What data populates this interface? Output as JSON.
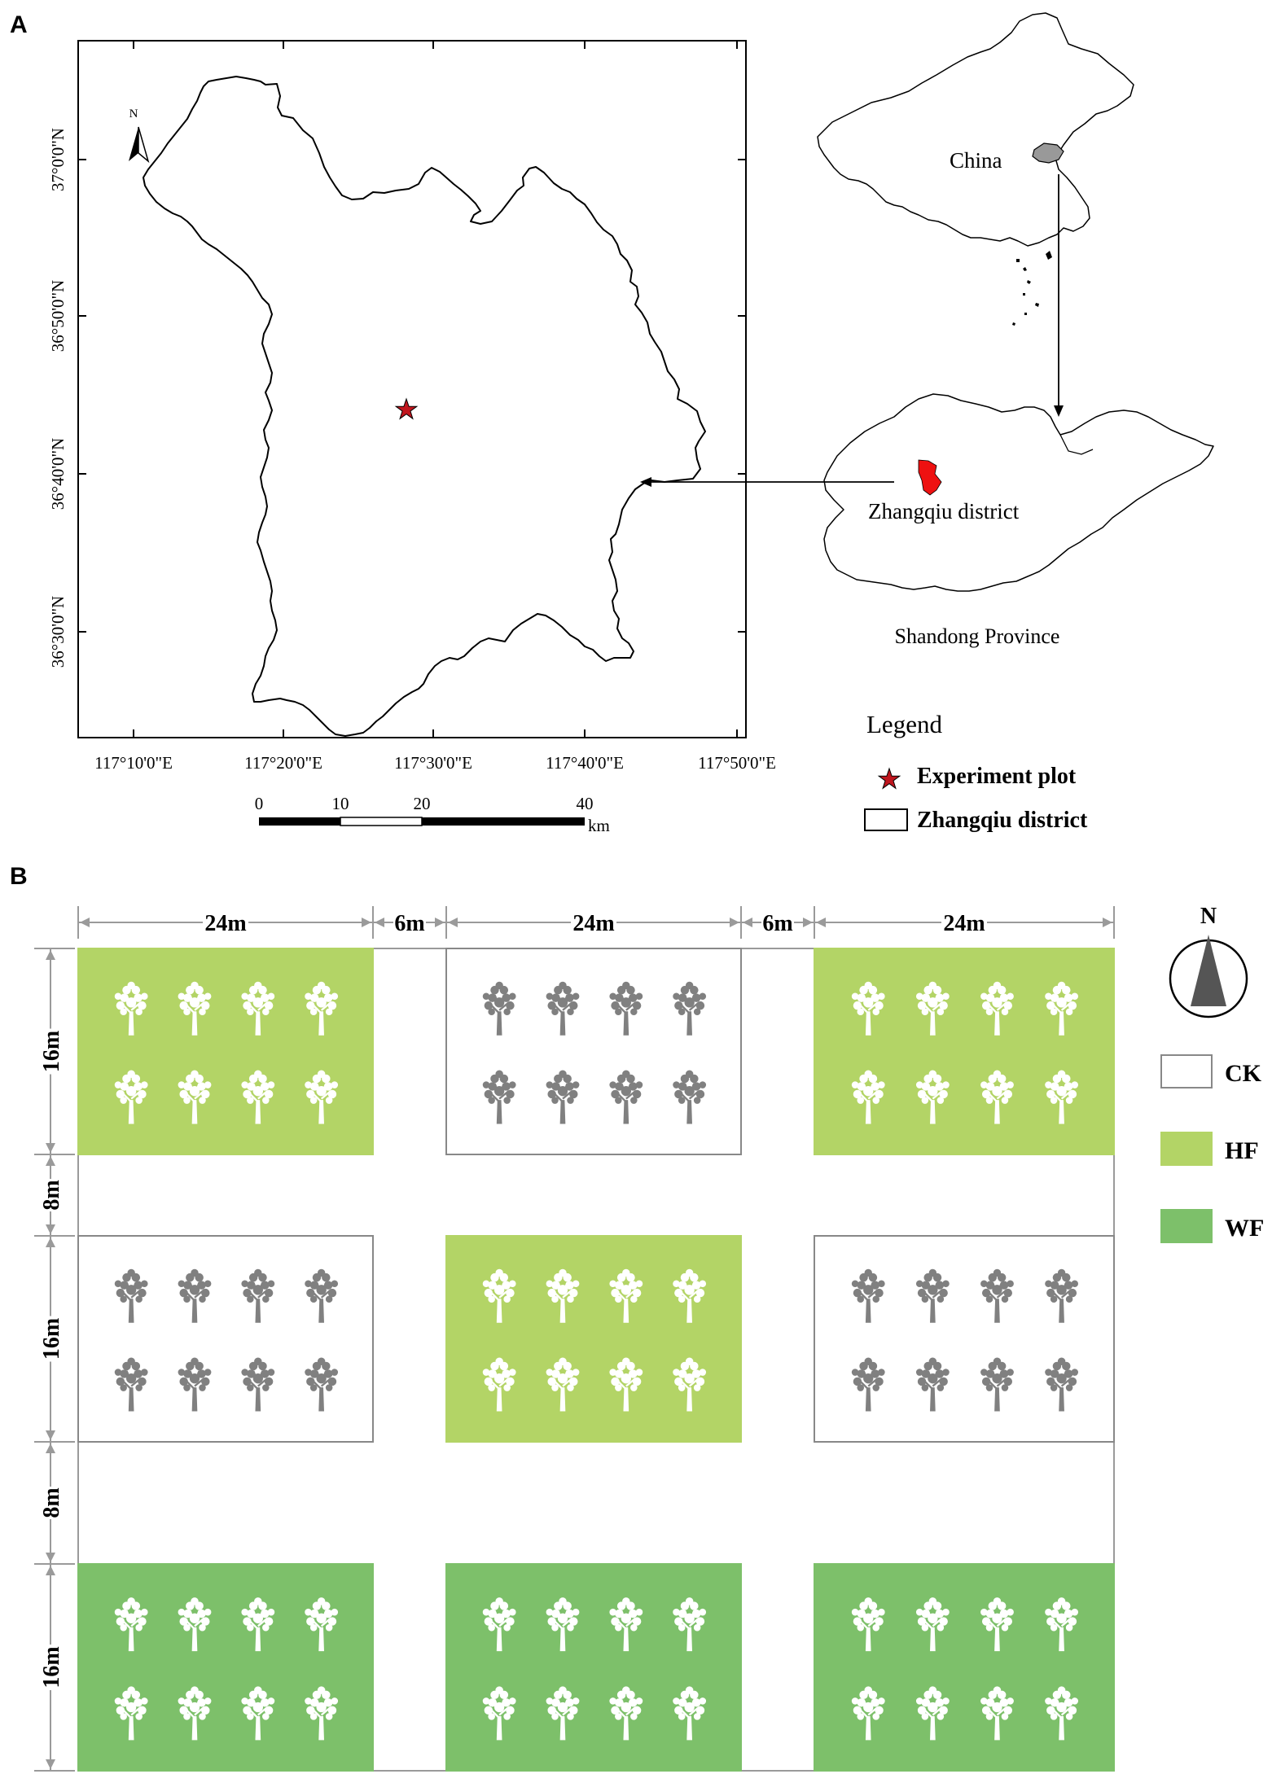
{
  "panel_a": {
    "letter": "A",
    "lon_ticks": [
      "117°10'0\"E",
      "117°20'0\"E",
      "117°30'0\"E",
      "117°40'0\"E",
      "117°50'0\"E"
    ],
    "lat_ticks": [
      "37°0'0\"N",
      "36°50'0\"N",
      "36°40'0\"N",
      "36°30'0\"N"
    ],
    "north_letter": "N",
    "scalebar": {
      "ticks": [
        "0",
        "10",
        "20",
        "40"
      ],
      "unit": "km"
    },
    "china_label": "China",
    "district_label": "Zhangqiu district",
    "province_label": "Shandong Province",
    "legend": {
      "title": "Legend",
      "items": [
        {
          "label": "Experiment plot",
          "symbol": "star",
          "color": "#c0161e"
        },
        {
          "label": "Zhangqiu district",
          "symbol": "rect-outline",
          "color": "#000000"
        }
      ]
    },
    "colors": {
      "district_highlight": "#ee1111",
      "china_highlight": "#999999"
    }
  },
  "panel_b": {
    "letter": "B",
    "column_widths": [
      "24m",
      "6m",
      "24m",
      "6m",
      "24m"
    ],
    "row_heights": [
      "16m",
      "8m",
      "16m",
      "8m",
      "16m"
    ],
    "layout": [
      [
        "HF",
        "CK",
        "HF"
      ],
      [
        "CK",
        "HF",
        "CK"
      ],
      [
        "WF",
        "WF",
        "WF"
      ]
    ],
    "trees_per_plot": {
      "rows": 2,
      "cols": 4
    },
    "north_letter": "N",
    "legend": [
      {
        "code": "CK",
        "fill": "#ffffff",
        "border": "#888888",
        "tree_color": "#808080"
      },
      {
        "code": "HF",
        "fill": "#b3d466",
        "border": "#b3d466",
        "tree_color": "#ffffff"
      },
      {
        "code": "WF",
        "fill": "#7dc06a",
        "border": "#7dc06a",
        "tree_color": "#ffffff"
      }
    ]
  }
}
